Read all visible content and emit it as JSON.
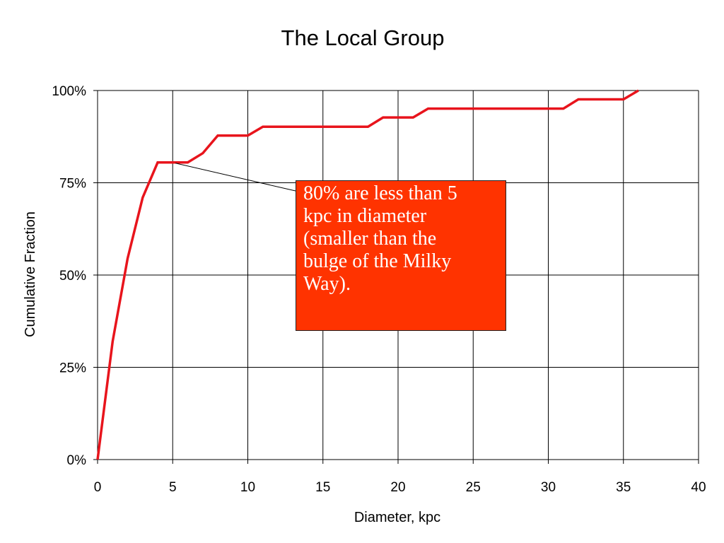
{
  "chart_data": {
    "type": "line",
    "title": "The Local Group",
    "xlabel": "Diameter, kpc",
    "ylabel": "Cumulative Fraction",
    "xlim": [
      0,
      40
    ],
    "ylim": [
      0,
      1
    ],
    "x_ticks": [
      0,
      5,
      10,
      15,
      20,
      25,
      30,
      35,
      40
    ],
    "x_tick_labels": [
      "0",
      "5",
      "10",
      "15",
      "20",
      "25",
      "30",
      "35",
      "40"
    ],
    "y_ticks": [
      0,
      0.25,
      0.5,
      0.75,
      1.0
    ],
    "y_tick_labels": [
      "0%",
      "25%",
      "50%",
      "75%",
      "100%"
    ],
    "grid": true,
    "legend": "none",
    "series": [
      {
        "color": "#e8141c",
        "points": [
          [
            0,
            0
          ],
          [
            1,
            0.32
          ],
          [
            2,
            0.545
          ],
          [
            3,
            0.71
          ],
          [
            4,
            0.805
          ],
          [
            6,
            0.805
          ],
          [
            7,
            0.83
          ],
          [
            8,
            0.878
          ],
          [
            10,
            0.878
          ],
          [
            11,
            0.902
          ],
          [
            18,
            0.902
          ],
          [
            19,
            0.927
          ],
          [
            21,
            0.927
          ],
          [
            22,
            0.951
          ],
          [
            31,
            0.951
          ],
          [
            32,
            0.976
          ],
          [
            35,
            0.976
          ],
          [
            36,
            1.0
          ]
        ]
      }
    ],
    "annotation": {
      "text": "80% are less than 5 kpc in diameter (smaller than the bulge of the Milky Way).",
      "lines": [
        "80% are less than 5",
        "kpc in diameter",
        "(smaller than the",
        "bulge of the Milky",
        "Way)."
      ],
      "points_to": [
        5,
        0.805
      ],
      "background": "#ff3300",
      "text_color": "#ffffff"
    }
  }
}
